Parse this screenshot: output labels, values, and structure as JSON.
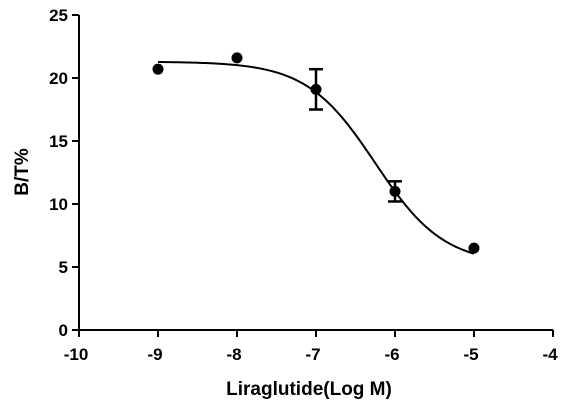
{
  "chart_data": {
    "type": "scatter",
    "title": "",
    "xlabel": "Liraglutide(Log M)",
    "ylabel": "B/T%",
    "xlim": [
      -10,
      -4
    ],
    "ylim": [
      0,
      25
    ],
    "x_ticks": [
      -10,
      -9,
      -8,
      -7,
      -6,
      -5,
      -4
    ],
    "y_ticks": [
      0,
      5,
      10,
      15,
      20,
      25
    ],
    "x_tick_labels": [
      "-10",
      "-9",
      "-8",
      "-7",
      "-6",
      "-5",
      "-4"
    ],
    "y_tick_labels": [
      "0",
      "5",
      "10",
      "15",
      "20",
      "25"
    ],
    "grid": false,
    "legend": "none",
    "series": [
      {
        "x": [
          -9,
          -8,
          -7,
          -6,
          -5
        ],
        "y": [
          20.7,
          21.6,
          19.1,
          11.0,
          6.5
        ],
        "error": [
          0,
          0,
          1.6,
          0.8,
          0
        ]
      }
    ],
    "fit": {
      "type": "sigmoidal dose-response",
      "bottom": 5.2,
      "top": 21.3,
      "logEC50": -6.25,
      "hill_slope": -1.0
    }
  }
}
